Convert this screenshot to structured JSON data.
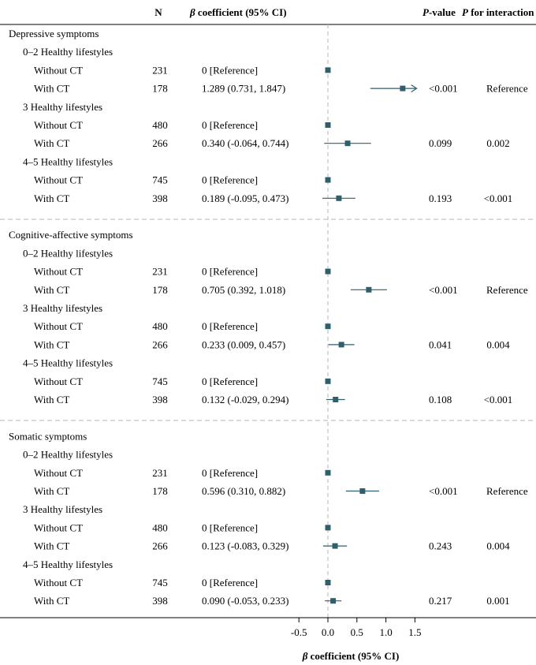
{
  "header": {
    "n": "N",
    "beta_symbol": "β",
    "beta_rest": " coefficient (95% CI)",
    "p_italic": "P",
    "p_rest": "-value",
    "pint_italic": "P",
    "pint_rest": " for interaction"
  },
  "x_axis": {
    "label_symbol": "β",
    "label_rest": " coefficient (95% CI)",
    "ticks": [
      -0.5,
      0.0,
      0.5,
      1.0,
      1.5
    ],
    "tick_labels": [
      "-0.5",
      "0.0",
      "0.5",
      "1.0",
      "1.5"
    ],
    "xlim": [
      -0.55,
      1.55
    ],
    "reference_line": 0
  },
  "chart_data": {
    "type": "forest",
    "title": "",
    "xlabel": "β coefficient (95% CI)",
    "xlim": [
      -0.55,
      1.55
    ],
    "sections": [
      {
        "title": "Depressive symptoms",
        "groups": [
          {
            "label": "0–2 Healthy lifestyles",
            "rows": [
              {
                "label": "Without CT",
                "n": "231",
                "coef_text": "0 [Reference]",
                "est": 0,
                "lo": null,
                "hi": null,
                "p": "",
                "p_int": "",
                "arrow": false
              },
              {
                "label": "With CT",
                "n": "178",
                "coef_text": "1.289 (0.731, 1.847)",
                "est": 1.289,
                "lo": 0.731,
                "hi": 1.847,
                "p": "<0.001",
                "p_int": "Reference",
                "arrow": true
              }
            ]
          },
          {
            "label": "3 Healthy lifestyles",
            "rows": [
              {
                "label": "Without CT",
                "n": "480",
                "coef_text": "0 [Reference]",
                "est": 0,
                "lo": null,
                "hi": null,
                "p": "",
                "p_int": "",
                "arrow": false
              },
              {
                "label": "With CT",
                "n": "266",
                "coef_text": "0.340 (-0.064, 0.744)",
                "est": 0.34,
                "lo": -0.064,
                "hi": 0.744,
                "p": "0.099",
                "p_int": "0.002",
                "arrow": false
              }
            ]
          },
          {
            "label": "4–5 Healthy lifestyles",
            "rows": [
              {
                "label": "Without CT",
                "n": "745",
                "coef_text": "0 [Reference]",
                "est": 0,
                "lo": null,
                "hi": null,
                "p": "",
                "p_int": "",
                "arrow": false
              },
              {
                "label": "With CT",
                "n": "398",
                "coef_text": "0.189 (-0.095, 0.473)",
                "est": 0.189,
                "lo": -0.095,
                "hi": 0.473,
                "p": "0.193",
                "p_int": "<0.001",
                "arrow": false
              }
            ]
          }
        ]
      },
      {
        "title": "Cognitive-affective symptoms",
        "groups": [
          {
            "label": "0–2 Healthy lifestyles",
            "rows": [
              {
                "label": "Without CT",
                "n": "231",
                "coef_text": "0 [Reference]",
                "est": 0,
                "lo": null,
                "hi": null,
                "p": "",
                "p_int": "",
                "arrow": false
              },
              {
                "label": "With CT",
                "n": "178",
                "coef_text": "0.705 (0.392, 1.018)",
                "est": 0.705,
                "lo": 0.392,
                "hi": 1.018,
                "p": "<0.001",
                "p_int": "Reference",
                "arrow": false
              }
            ]
          },
          {
            "label": "3 Healthy lifestyles",
            "rows": [
              {
                "label": "Without CT",
                "n": "480",
                "coef_text": "0 [Reference]",
                "est": 0,
                "lo": null,
                "hi": null,
                "p": "",
                "p_int": "",
                "arrow": false
              },
              {
                "label": "With CT",
                "n": "266",
                "coef_text": "0.233 (0.009, 0.457)",
                "est": 0.233,
                "lo": 0.009,
                "hi": 0.457,
                "p": "0.041",
                "p_int": "0.004",
                "arrow": false
              }
            ]
          },
          {
            "label": "4–5 Healthy lifestyles",
            "rows": [
              {
                "label": "Without CT",
                "n": "745",
                "coef_text": "0 [Reference]",
                "est": 0,
                "lo": null,
                "hi": null,
                "p": "",
                "p_int": "",
                "arrow": false
              },
              {
                "label": "With CT",
                "n": "398",
                "coef_text": "0.132 (-0.029, 0.294)",
                "est": 0.132,
                "lo": -0.029,
                "hi": 0.294,
                "p": "0.108",
                "p_int": "<0.001",
                "arrow": false
              }
            ]
          }
        ]
      },
      {
        "title": "Somatic symptoms",
        "groups": [
          {
            "label": "0–2 Healthy lifestyles",
            "rows": [
              {
                "label": "Without CT",
                "n": "231",
                "coef_text": "0 [Reference]",
                "est": 0,
                "lo": null,
                "hi": null,
                "p": "",
                "p_int": "",
                "arrow": false
              },
              {
                "label": "With CT",
                "n": "178",
                "coef_text": "0.596 (0.310, 0.882)",
                "est": 0.596,
                "lo": 0.31,
                "hi": 0.882,
                "p": "<0.001",
                "p_int": "Reference",
                "arrow": false
              }
            ]
          },
          {
            "label": "3 Healthy lifestyles",
            "rows": [
              {
                "label": "Without CT",
                "n": "480",
                "coef_text": "0 [Reference]",
                "est": 0,
                "lo": null,
                "hi": null,
                "p": "",
                "p_int": "",
                "arrow": false
              },
              {
                "label": "With CT",
                "n": "266",
                "coef_text": "0.123 (-0.083, 0.329)",
                "est": 0.123,
                "lo": -0.083,
                "hi": 0.329,
                "p": "0.243",
                "p_int": "0.004",
                "arrow": false
              }
            ]
          },
          {
            "label": "4–5 Healthy lifestyles",
            "rows": [
              {
                "label": "Without CT",
                "n": "745",
                "coef_text": "0 [Reference]",
                "est": 0,
                "lo": null,
                "hi": null,
                "p": "",
                "p_int": "",
                "arrow": false
              },
              {
                "label": "With CT",
                "n": "398",
                "coef_text": "0.090 (-0.053, 0.233)",
                "est": 0.09,
                "lo": -0.053,
                "hi": 0.233,
                "p": "0.217",
                "p_int": "0.001",
                "arrow": false
              }
            ]
          }
        ]
      }
    ]
  },
  "colors": {
    "marker": "#2f5f6b",
    "ci_line": "#2f5f6b",
    "reference_line": "#b5b5b5",
    "separator": "#b5b5b5",
    "axis": "#000000"
  }
}
